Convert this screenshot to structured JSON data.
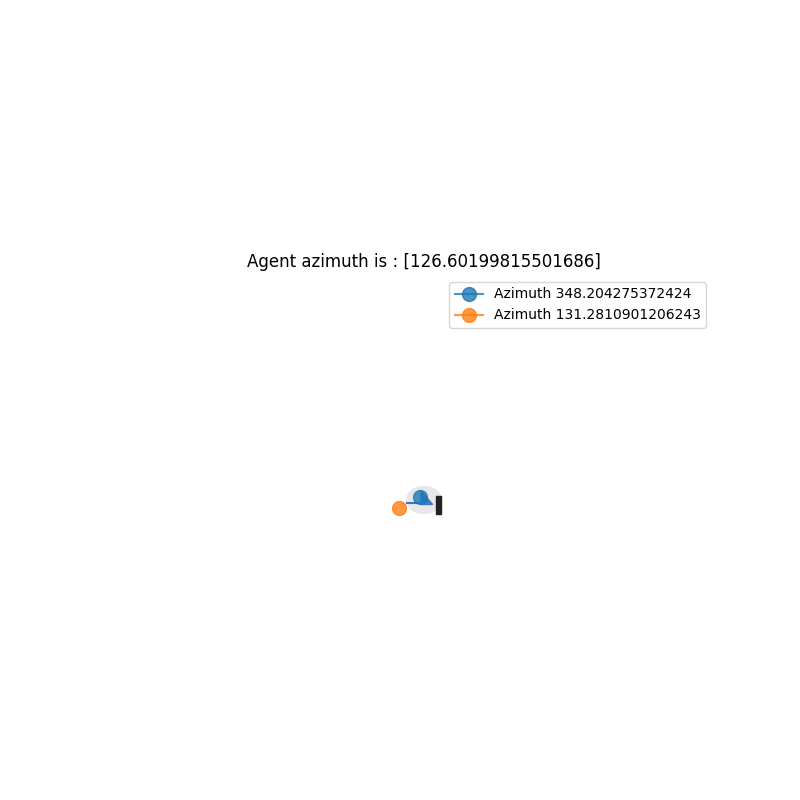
{
  "chart_data": {
    "type": "scatter",
    "title": "Agent azimuth is : [126.60199815501686]",
    "series": [
      {
        "name": "Azimuth 348.204275372424",
        "color": "#1f77b4",
        "marker": "o",
        "x": [
          -0.014
        ],
        "values": [
          0.013
        ]
      },
      {
        "name": "Azimuth 131.2810901206243",
        "color": "#ff7f0e",
        "marker": "o",
        "x": [
          -0.087
        ],
        "values": [
          -0.036
        ]
      }
    ],
    "xlim": [
      -1,
      1
    ],
    "ylim": [
      -1,
      1
    ],
    "tick_labels": false,
    "legend": "upper right"
  }
}
